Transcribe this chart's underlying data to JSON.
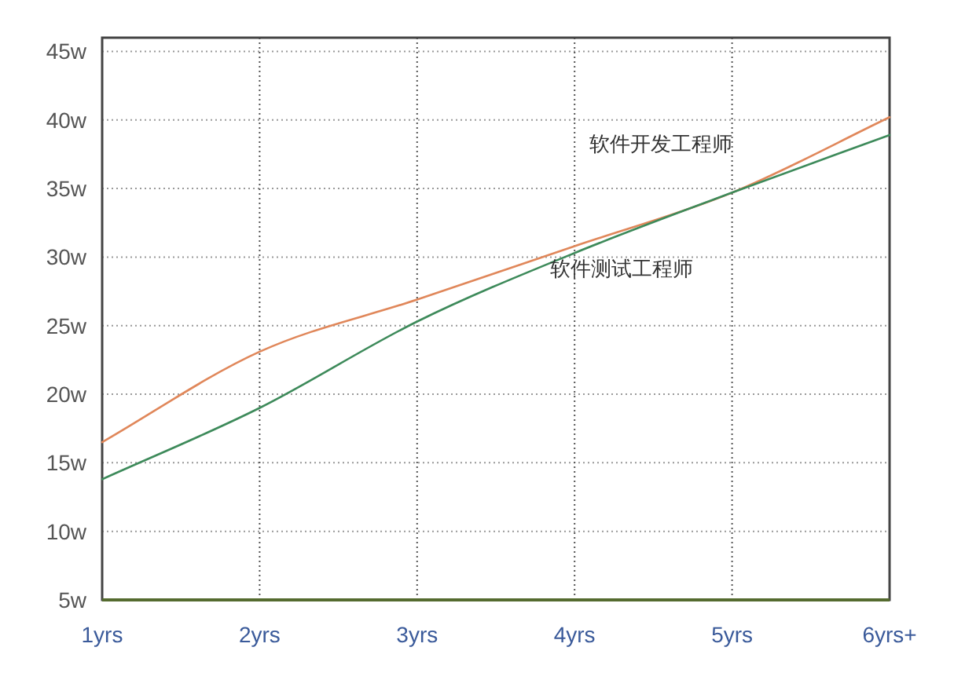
{
  "chart_data": {
    "type": "line",
    "categories": [
      "1yrs",
      "2yrs",
      "3yrs",
      "4yrs",
      "5yrs",
      "6yrs+"
    ],
    "series": [
      {
        "name": "软件开发工程师",
        "color": "#e0875a",
        "values": [
          16.5,
          23.1,
          26.9,
          30.8,
          34.7,
          40.2
        ]
      },
      {
        "name": "软件测试工程师",
        "color": "#3d8a5a",
        "values": [
          13.8,
          19,
          25.3,
          30.3,
          34.7,
          38.9
        ]
      }
    ],
    "ylim": [
      5,
      46
    ],
    "yticks": [
      {
        "value": 5,
        "label": "5w"
      },
      {
        "value": 10,
        "label": "10w"
      },
      {
        "value": 15,
        "label": "15w"
      },
      {
        "value": 20,
        "label": "20w"
      },
      {
        "value": 25,
        "label": "25w"
      },
      {
        "value": 30,
        "label": "30w"
      },
      {
        "value": 35,
        "label": "35w"
      },
      {
        "value": 40,
        "label": "40w"
      },
      {
        "value": 45,
        "label": "45w"
      }
    ],
    "grid": true,
    "legend": false,
    "marker": "none",
    "line_style": "solid"
  }
}
